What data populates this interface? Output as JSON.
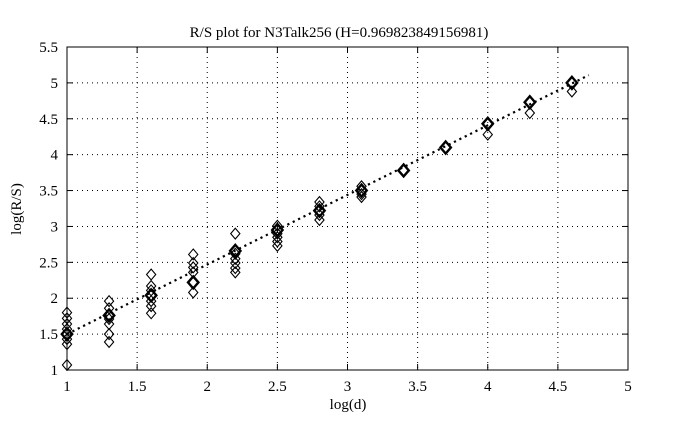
{
  "title": "R/S plot for N3Talk256 (H=0.969823849156981)",
  "colors": {
    "background": "#ffffff",
    "ink": "#000000"
  },
  "chart_data": {
    "type": "scatter",
    "title": "R/S plot for N3Talk256 (H=0.969823849156981)",
    "xlabel": "log(d)",
    "ylabel": "log(R/S)",
    "xlim": [
      1,
      5
    ],
    "ylim": [
      1,
      5.5
    ],
    "xticks": {
      "values": [
        1,
        1.5,
        2,
        2.5,
        3,
        3.5,
        4,
        4.5,
        5
      ],
      "labels": [
        "1",
        "1.5",
        "2",
        "2.5",
        "3",
        "3.5",
        "4",
        "4.5",
        "5"
      ]
    },
    "yticks": {
      "values": [
        1,
        1.5,
        2,
        2.5,
        3,
        3.5,
        4,
        4.5,
        5,
        5.5
      ],
      "labels": [
        "1",
        "1.5",
        "2",
        "2.5",
        "3",
        "3.5",
        "4",
        "4.5",
        "5",
        "5.5"
      ]
    },
    "grid": true,
    "legend": "none",
    "hurst_exponent": 0.969823849156981,
    "series": [
      {
        "name": "rs-samples",
        "marker": "open-diamond",
        "points": [
          [
            1.0,
            1.8
          ],
          [
            1.0,
            1.72
          ],
          [
            1.0,
            1.64
          ],
          [
            1.0,
            1.57
          ],
          [
            1.0,
            1.43
          ],
          [
            1.0,
            1.36
          ],
          [
            1.0,
            1.07
          ],
          [
            1.3,
            1.96
          ],
          [
            1.3,
            1.86
          ],
          [
            1.3,
            1.71
          ],
          [
            1.3,
            1.64
          ],
          [
            1.3,
            1.5
          ],
          [
            1.3,
            1.39
          ],
          [
            1.6,
            2.33
          ],
          [
            1.6,
            2.17
          ],
          [
            1.6,
            2.11
          ],
          [
            1.6,
            1.96
          ],
          [
            1.6,
            1.89
          ],
          [
            1.6,
            1.79
          ],
          [
            1.9,
            2.61
          ],
          [
            1.9,
            2.49
          ],
          [
            1.9,
            2.43
          ],
          [
            1.9,
            2.36
          ],
          [
            1.9,
            2.08
          ],
          [
            2.2,
            2.9
          ],
          [
            2.2,
            2.62
          ],
          [
            2.2,
            2.55
          ],
          [
            2.2,
            2.49
          ],
          [
            2.2,
            2.42
          ],
          [
            2.2,
            2.36
          ],
          [
            2.5,
            3.01
          ],
          [
            2.5,
            2.9
          ],
          [
            2.5,
            2.85
          ],
          [
            2.5,
            2.79
          ],
          [
            2.5,
            2.73
          ],
          [
            2.8,
            3.34
          ],
          [
            2.8,
            3.28
          ],
          [
            2.8,
            3.16
          ],
          [
            2.8,
            3.09
          ],
          [
            3.1,
            3.56
          ],
          [
            3.1,
            3.45
          ],
          [
            3.1,
            3.41
          ],
          [
            4.0,
            4.28
          ],
          [
            4.3,
            4.58
          ],
          [
            4.6,
            4.88
          ]
        ]
      },
      {
        "name": "rs-means",
        "marker": "bold-diamond",
        "points": [
          [
            1.0,
            1.5
          ],
          [
            1.3,
            1.76
          ],
          [
            1.6,
            2.04
          ],
          [
            1.9,
            2.22
          ],
          [
            2.2,
            2.66
          ],
          [
            2.5,
            2.95
          ],
          [
            2.8,
            3.22
          ],
          [
            3.1,
            3.5
          ],
          [
            3.4,
            3.78
          ],
          [
            3.7,
            4.1
          ],
          [
            4.0,
            4.43
          ],
          [
            4.3,
            4.73
          ],
          [
            4.6,
            5.0
          ]
        ]
      }
    ],
    "fit_line": {
      "style": "dotted",
      "slope": 0.969823849156981,
      "intercept": 0.53,
      "x_start": 1.0,
      "x_end": 4.72
    }
  }
}
